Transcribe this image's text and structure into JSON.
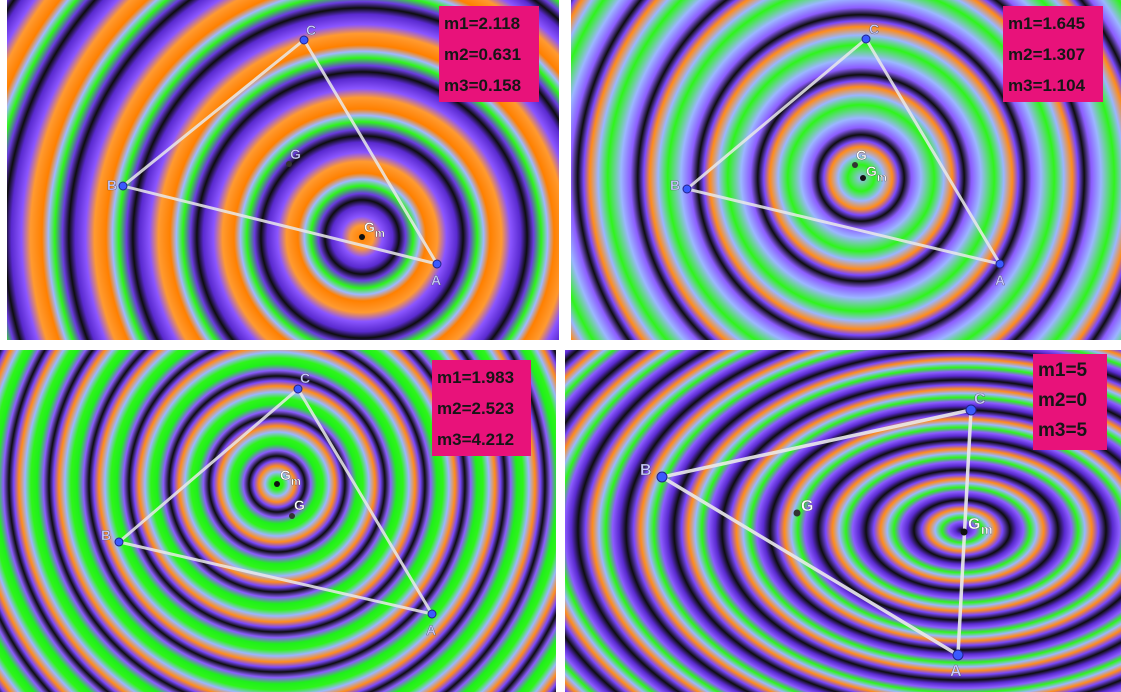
{
  "panels": [
    {
      "masses": [
        "m1=2.118",
        "m2=0.631",
        "m3=0.158"
      ],
      "points": {
        "A": "A",
        "B": "B",
        "C": "C",
        "G": "G",
        "Gm": "G",
        "Gm_sub": "m"
      },
      "colors": {
        "center": "#ff8000",
        "ring": [
          "#ff8c1a",
          "#7a48ff",
          "#111111",
          "#8c5cff",
          "#2ef51a",
          "#a0b8ff"
        ]
      }
    },
    {
      "masses": [
        "m1=1.645",
        "m2=1.307",
        "m3=1.104"
      ],
      "points": {
        "A": "A",
        "B": "B",
        "C": "C",
        "G": "G",
        "Gm": "G",
        "Gm_sub": "m"
      },
      "colors": {
        "center": "#8fb4ff",
        "ring": [
          "#2ef51a",
          "#9bb6ff",
          "#ff8c1a",
          "#7a48ff",
          "#111111",
          "#8c5cff"
        ]
      }
    },
    {
      "masses": [
        "m1=1.983",
        "m2=2.523",
        "m3=4.212"
      ],
      "points": {
        "A": "A",
        "B": "B",
        "C": "C",
        "G": "G",
        "Gm": "G",
        "Gm_sub": "m"
      },
      "colors": {
        "center": "#1ff01a",
        "ring": [
          "#2ef51a",
          "#9bb6ff",
          "#ff8c1a",
          "#7a48ff",
          "#111111",
          "#8c5cff"
        ]
      }
    },
    {
      "masses": [
        "m1=5",
        "m2=0",
        "m3=5"
      ],
      "points": {
        "A": "A",
        "B": "B",
        "C": "C",
        "G": "G",
        "Gm": "G",
        "Gm_sub": "m"
      },
      "colors": {
        "center": "#111111",
        "ring": [
          "#111111",
          "#8c5cff",
          "#2ef51a",
          "#9bb6ff",
          "#ff8c1a",
          "#7a48ff"
        ]
      }
    }
  ]
}
